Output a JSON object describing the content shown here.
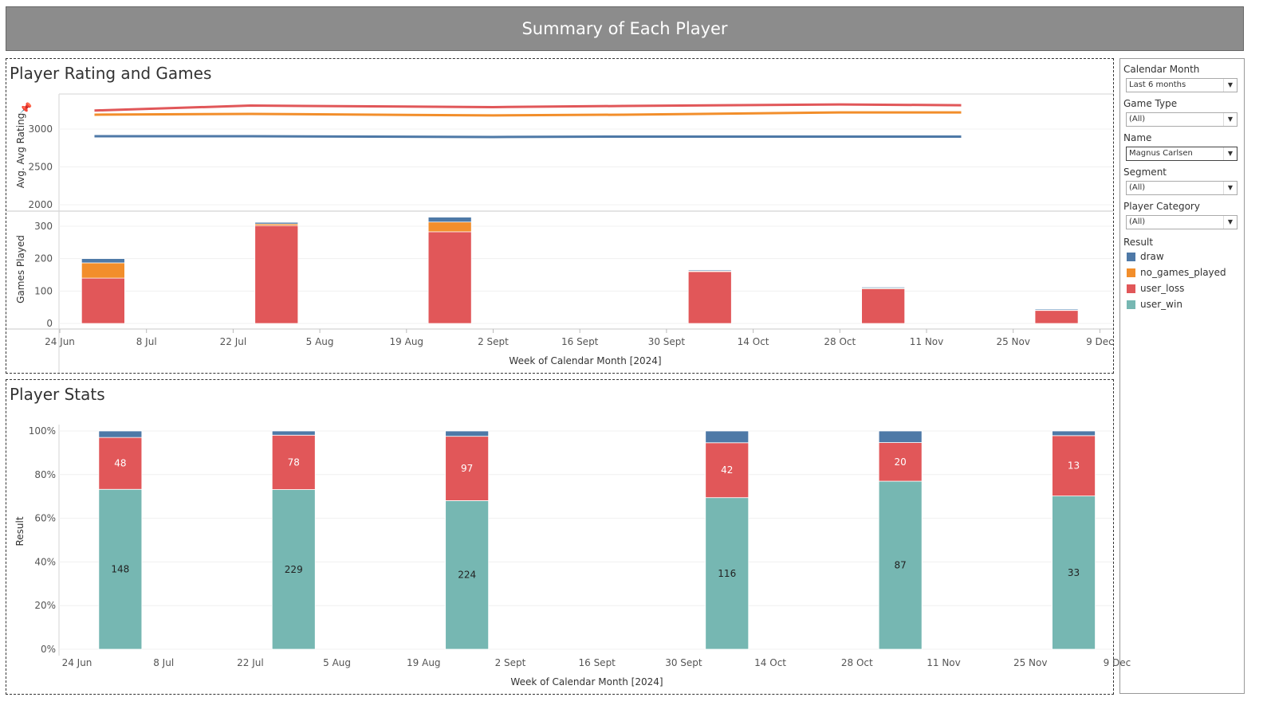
{
  "banner": {
    "title": "Summary of Each Player"
  },
  "panel1": {
    "title": "Player Rating and Games"
  },
  "panel2": {
    "title": "Player Stats"
  },
  "colors": {
    "draw": "#4e79a7",
    "no_games_played": "#f28e2b",
    "user_loss": "#e15759",
    "user_win": "#76b7b2"
  },
  "filters": {
    "items": [
      {
        "label": "Calendar Month",
        "value": "Last 6 months"
      },
      {
        "label": "Game Type",
        "value": "(All)"
      },
      {
        "label": "Name",
        "value": "Magnus Carlsen"
      },
      {
        "label": "Segment",
        "value": "(All)"
      },
      {
        "label": "Player Category",
        "value": "(All)"
      }
    ],
    "legend_title": "Result",
    "legend": [
      "draw",
      "no_games_played",
      "user_loss",
      "user_win"
    ]
  },
  "chart_data": [
    {
      "type": "line",
      "ylabel": "Avg. Avg Rating",
      "y_ticks": [
        2000,
        2500,
        3000
      ],
      "ylim": [
        1990,
        3430
      ],
      "x_ticks": [
        "24 Jun",
        "8 Jul",
        "22 Jul",
        "5 Aug",
        "19 Aug",
        "2 Sept",
        "16 Sept",
        "30 Sept",
        "14 Oct",
        "28 Oct",
        "11 Nov",
        "25 Nov",
        "9 Dec"
      ],
      "x_note": "x values are week indices on the shared date axis; tick i = label i",
      "series": [
        {
          "color": "#e15759",
          "x": [
            0.4,
            2.2,
            5,
            6.5,
            9,
            10.4
          ],
          "y": [
            3245,
            3310,
            3290,
            3305,
            3325,
            3315
          ]
        },
        {
          "color": "#f28e2b",
          "x": [
            0.4,
            2.2,
            5,
            6.5,
            9,
            10.4
          ],
          "y": [
            3190,
            3200,
            3180,
            3190,
            3220,
            3220
          ]
        },
        {
          "color": "#4e79a7",
          "x": [
            0.4,
            2.2,
            5,
            6.5,
            9,
            10.4
          ],
          "y": [
            2905,
            2905,
            2895,
            2900,
            2900,
            2900
          ]
        }
      ]
    },
    {
      "type": "bar",
      "stacked": true,
      "ylabel": "Games Played",
      "xlabel": "Week of Calendar Month [2024]",
      "y_ticks": [
        0,
        100,
        200,
        300
      ],
      "ylim": [
        0,
        340
      ],
      "x_ticks": [
        "24 Jun",
        "8 Jul",
        "22 Jul",
        "5 Aug",
        "19 Aug",
        "2 Sept",
        "16 Sept",
        "30 Sept",
        "14 Oct",
        "28 Oct",
        "11 Nov",
        "25 Nov",
        "9 Dec"
      ],
      "bars": [
        {
          "week": "1 Jul",
          "user_loss": 140,
          "no_games_played": 47,
          "draw": 13,
          "user_win": 0
        },
        {
          "week": "29 Jul",
          "user_loss": 302,
          "no_games_played": 5,
          "draw": 5,
          "user_win": 0
        },
        {
          "week": "26 Aug",
          "user_loss": 283,
          "no_games_played": 30,
          "draw": 15,
          "user_win": 0
        },
        {
          "week": "7 Oct",
          "user_loss": 160,
          "no_games_played": 2,
          "draw": 3,
          "user_win": 0
        },
        {
          "week": "4 Nov",
          "user_loss": 107,
          "no_games_played": 2,
          "draw": 3,
          "user_win": 0
        },
        {
          "week": "2 Dec",
          "user_loss": 40,
          "no_games_played": 1,
          "draw": 3,
          "user_win": 0
        }
      ]
    },
    {
      "type": "bar",
      "stacked": true,
      "percent": true,
      "ylabel": "Result",
      "xlabel": "Week of Calendar Month [2024]",
      "y_ticks": [
        "0%",
        "20%",
        "40%",
        "60%",
        "80%",
        "100%"
      ],
      "x_ticks": [
        "24 Jun",
        "8 Jul",
        "22 Jul",
        "5 Aug",
        "19 Aug",
        "2 Sept",
        "16 Sept",
        "30 Sept",
        "14 Oct",
        "28 Oct",
        "11 Nov",
        "25 Nov",
        "9 Dec"
      ],
      "bars": [
        {
          "week": "1 Jul",
          "user_win": 148,
          "user_loss": 48,
          "draw": 6
        },
        {
          "week": "29 Jul",
          "user_win": 229,
          "user_loss": 78,
          "draw": 6
        },
        {
          "week": "26 Aug",
          "user_win": 224,
          "user_loss": 97,
          "draw": 8
        },
        {
          "week": "7 Oct",
          "user_win": 116,
          "user_loss": 42,
          "draw": 9
        },
        {
          "week": "4 Nov",
          "user_win": 87,
          "user_loss": 20,
          "draw": 6
        },
        {
          "week": "2 Dec",
          "user_win": 33,
          "user_loss": 13,
          "draw": 1
        }
      ]
    }
  ]
}
